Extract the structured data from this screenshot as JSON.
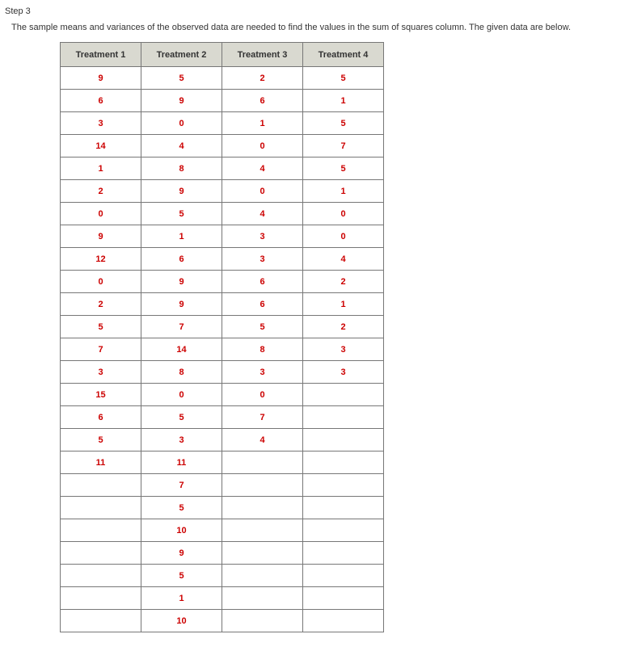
{
  "step_label": "Step 3",
  "intro_text": "The sample means and variances of the observed data are needed to find the values in the sum of squares column. The given data are below.",
  "table": {
    "columns": [
      "Treatment 1",
      "Treatment 2",
      "Treatment 3",
      "Treatment 4"
    ],
    "rows": [
      [
        "9",
        "5",
        "2",
        "5"
      ],
      [
        "6",
        "9",
        "6",
        "1"
      ],
      [
        "3",
        "0",
        "1",
        "5"
      ],
      [
        "14",
        "4",
        "0",
        "7"
      ],
      [
        "1",
        "8",
        "4",
        "5"
      ],
      [
        "2",
        "9",
        "0",
        "1"
      ],
      [
        "0",
        "5",
        "4",
        "0"
      ],
      [
        "9",
        "1",
        "3",
        "0"
      ],
      [
        "12",
        "6",
        "3",
        "4"
      ],
      [
        "0",
        "9",
        "6",
        "2"
      ],
      [
        "2",
        "9",
        "6",
        "1"
      ],
      [
        "5",
        "7",
        "5",
        "2"
      ],
      [
        "7",
        "14",
        "8",
        "3"
      ],
      [
        "3",
        "8",
        "3",
        "3"
      ],
      [
        "15",
        "0",
        "0",
        ""
      ],
      [
        "6",
        "5",
        "7",
        ""
      ],
      [
        "5",
        "3",
        "4",
        ""
      ],
      [
        "11",
        "11",
        "",
        ""
      ],
      [
        "",
        "7",
        "",
        ""
      ],
      [
        "",
        "5",
        "",
        ""
      ],
      [
        "",
        "10",
        "",
        ""
      ],
      [
        "",
        "9",
        "",
        ""
      ],
      [
        "",
        "5",
        "",
        ""
      ],
      [
        "",
        "1",
        "",
        ""
      ],
      [
        "",
        "10",
        "",
        ""
      ]
    ]
  }
}
